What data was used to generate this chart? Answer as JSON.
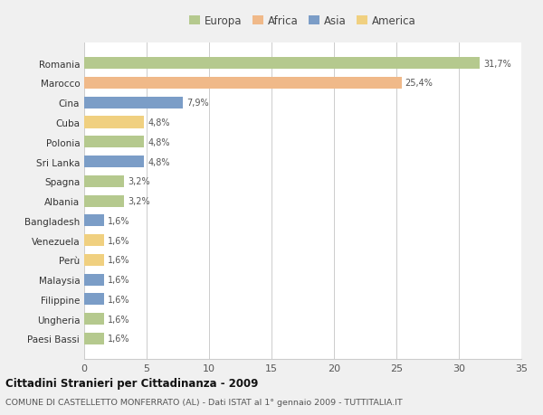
{
  "countries": [
    "Romania",
    "Marocco",
    "Cina",
    "Cuba",
    "Polonia",
    "Sri Lanka",
    "Spagna",
    "Albania",
    "Bangladesh",
    "Venezuela",
    "Perù",
    "Malaysia",
    "Filippine",
    "Ungheria",
    "Paesi Bassi"
  ],
  "values": [
    31.7,
    25.4,
    7.9,
    4.8,
    4.8,
    4.8,
    3.2,
    3.2,
    1.6,
    1.6,
    1.6,
    1.6,
    1.6,
    1.6,
    1.6
  ],
  "labels": [
    "31,7%",
    "25,4%",
    "7,9%",
    "4,8%",
    "4,8%",
    "4,8%",
    "3,2%",
    "3,2%",
    "1,6%",
    "1,6%",
    "1,6%",
    "1,6%",
    "1,6%",
    "1,6%",
    "1,6%"
  ],
  "regions": [
    "Europa",
    "Africa",
    "Asia",
    "America",
    "Europa",
    "Asia",
    "Europa",
    "Europa",
    "Asia",
    "America",
    "America",
    "Asia",
    "Asia",
    "Europa",
    "Europa"
  ],
  "colors": {
    "Europa": "#b5c98e",
    "Africa": "#f0b989",
    "Asia": "#7b9dc7",
    "America": "#f0d080"
  },
  "legend_order": [
    "Europa",
    "Africa",
    "Asia",
    "America"
  ],
  "xlim": [
    0,
    35
  ],
  "xticks": [
    0,
    5,
    10,
    15,
    20,
    25,
    30,
    35
  ],
  "title": "Cittadini Stranieri per Cittadinanza - 2009",
  "subtitle": "COMUNE DI CASTELLETTO MONFERRATO (AL) - Dati ISTAT al 1° gennaio 2009 - TUTTITALIA.IT",
  "bg_color": "#f0f0f0",
  "plot_bg_color": "#ffffff",
  "grid_color": "#cccccc"
}
